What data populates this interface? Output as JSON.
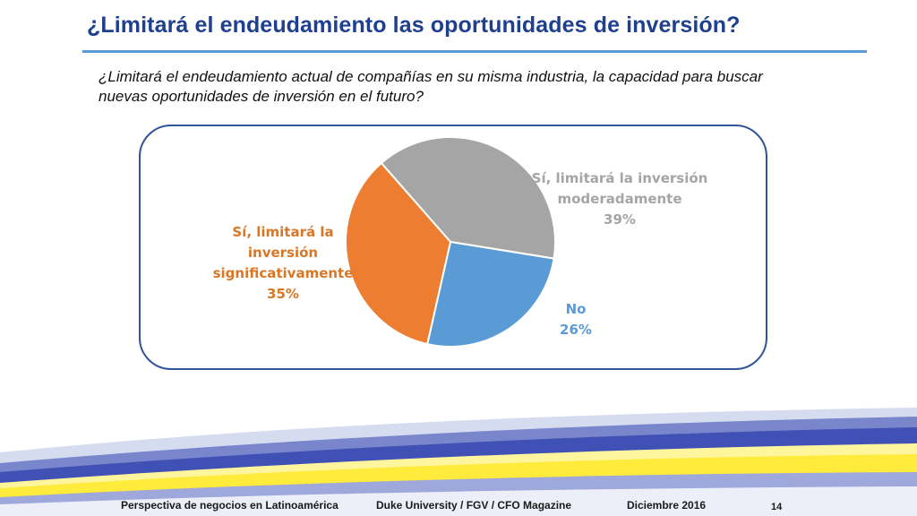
{
  "slide": {
    "title": "¿Limitará el endeudamiento las oportunidades de inversión?",
    "question": "¿Limitará el endeudamiento actual de compañías en su misma industria, la capacidad para buscar nuevas oportunidades de inversión en el futuro?"
  },
  "chart_data": {
    "type": "pie",
    "slices": [
      {
        "label_lines": [
          "Sí, limitará la inversión",
          "moderadamente"
        ],
        "value": 39,
        "value_label": "39%",
        "color": "#a5a5a5",
        "label_color": "#a5a5a5"
      },
      {
        "label_lines": [
          "No"
        ],
        "value": 26,
        "value_label": "26%",
        "color": "#5b9bd5",
        "label_color": "#5b9bd5"
      },
      {
        "label_lines": [
          "Sí, limitará la",
          "inversión",
          "significativamente"
        ],
        "value": 35,
        "value_label": "35%",
        "color": "#ed7d31",
        "label_color": "#d97726"
      }
    ]
  },
  "footer": {
    "left": "Perspectiva de negocios en Latinoamérica",
    "center": "Duke University / FGV / CFO Magazine",
    "right": "Diciembre 2016",
    "page": "14"
  },
  "colors": {
    "title": "#1f3f8f",
    "accent_rule": "#5b9bd5",
    "frame": "#2f5597",
    "band_blue": "#3f51b5",
    "band_yellow": "#ffeb3b"
  }
}
